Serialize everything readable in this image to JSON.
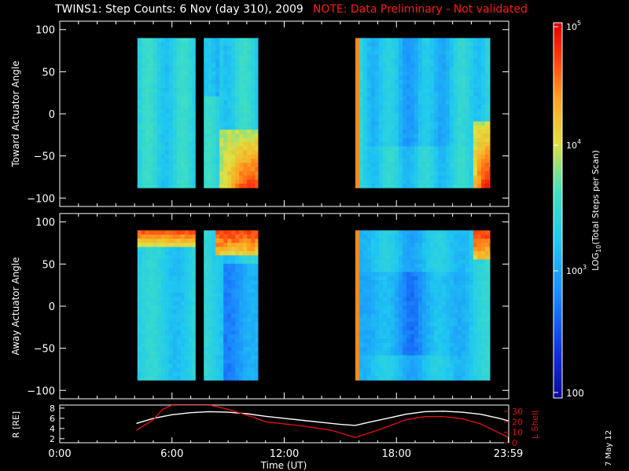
{
  "title": {
    "main": "TWINS1: Step Counts:  6 Nov (day 310), 2009",
    "note": "NOTE: Data Preliminary - Not validated"
  },
  "datestamp": "7 May 12",
  "colors": {
    "background": "#000000",
    "axes": "#ffffff",
    "note_text": "#ff1a1a",
    "r_line": "#ffffff",
    "lshell_line": "#e01010",
    "colormap": [
      "#0a0a96",
      "#1030e0",
      "#1a8cff",
      "#20c8f0",
      "#40e0c0",
      "#e0e040",
      "#ffa020",
      "#ff4010",
      "#e00000"
    ]
  },
  "chart_data": [
    {
      "type": "heatmap",
      "panel": "toward",
      "ylabel": "Toward Actuator Angle",
      "ylim": [
        -110,
        110
      ],
      "yticks": [
        100,
        50,
        0,
        -50,
        -100
      ],
      "xlim": [
        0,
        24
      ],
      "data_y_range": [
        -88,
        90
      ],
      "data_blocks_hours": [
        [
          4.15,
          7.25
        ],
        [
          7.7,
          10.6
        ],
        [
          15.8,
          23.0
        ]
      ],
      "description_levels": "log10 counts, mostly ~1e3 (cyan/blue), high values (~1e4-1e5, yellow to red) at negative angles after 8:30 and near 22:30-23:30"
    },
    {
      "type": "heatmap",
      "panel": "away",
      "ylabel": "Away Actuator Angle",
      "ylim": [
        -110,
        110
      ],
      "yticks": [
        100,
        50,
        0,
        -50,
        -100
      ],
      "xlim": [
        0,
        24
      ],
      "data_y_range": [
        -88,
        90
      ],
      "data_blocks_hours": [
        [
          4.15,
          7.25
        ],
        [
          7.7,
          10.6
        ],
        [
          15.8,
          23.0
        ]
      ]
    },
    {
      "type": "line",
      "panel": "orbit",
      "ylabel_left": "R [RE]",
      "ylabel_right": "L Shell",
      "yticks_left": [
        8,
        6,
        4,
        2
      ],
      "yticks_right": [
        30,
        20,
        10,
        0
      ],
      "xlabel": "Time (UT)",
      "xticks": [
        "0:00",
        "6:00",
        "12:00",
        "18:00",
        "23:59"
      ],
      "series": [
        {
          "name": "R",
          "x": [
            4.1,
            5.0,
            6.0,
            7.0,
            8.0,
            9.0,
            10.0,
            11.0,
            12.0,
            13.0,
            14.0,
            15.0,
            15.8,
            16.5,
            17.5,
            18.5,
            19.5,
            20.5,
            21.5,
            22.5,
            23.5,
            23.98
          ],
          "y": [
            5.0,
            6.0,
            6.7,
            7.1,
            7.3,
            7.2,
            6.9,
            6.4,
            6.0,
            5.6,
            5.2,
            4.8,
            4.6,
            5.2,
            6.0,
            6.8,
            7.3,
            7.4,
            7.2,
            6.8,
            6.0,
            5.5
          ]
        },
        {
          "name": "L Shell",
          "x": [
            4.1,
            5.0,
            5.5,
            6.0,
            8.0,
            9.0,
            10.4,
            11.0,
            13.0,
            14.5,
            15.8,
            17.0,
            18.5,
            19.5,
            20.5,
            21.5,
            22.5,
            23.98
          ],
          "y": [
            12,
            22,
            32,
            36,
            36,
            32,
            24,
            20,
            16,
            12,
            5,
            12,
            22,
            25,
            25,
            23,
            18,
            5
          ]
        }
      ]
    }
  ],
  "colorbar": {
    "label_pre": "LOG",
    "label_sub": "10",
    "label_post": "(Total Steps per Scan)",
    "tick_labels": [
      "10",
      "10",
      "100"
    ],
    "tick_sups": [
      "5",
      "4",
      "3"
    ]
  }
}
